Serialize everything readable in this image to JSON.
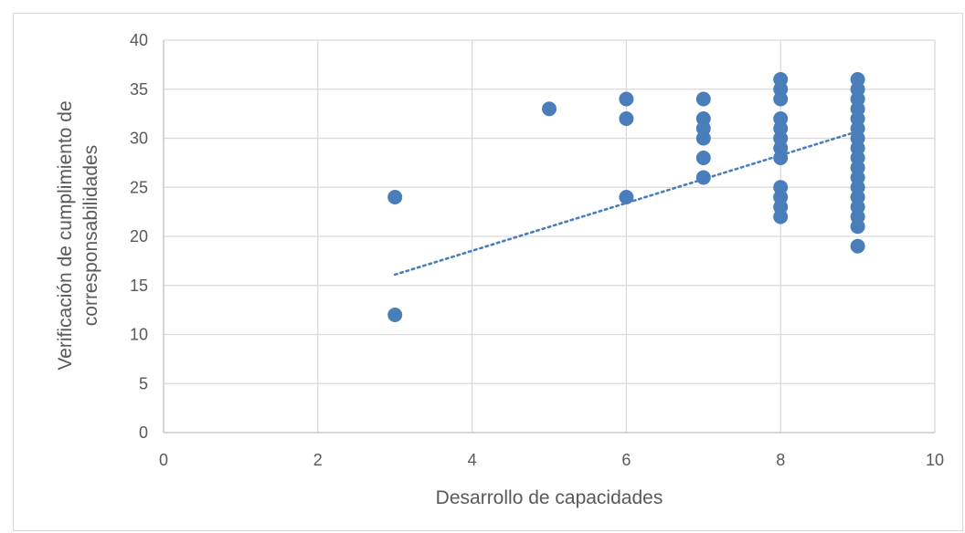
{
  "chart_data": {
    "type": "scatter",
    "title": "",
    "xlabel": "Desarrollo de capacidades",
    "ylabel_lines": [
      "Verificación de cumplimiento de",
      "corresponsabilidades"
    ],
    "xlim": [
      0,
      10
    ],
    "ylim": [
      0,
      40
    ],
    "xticks": [
      "0",
      "2",
      "4",
      "6",
      "8",
      "10"
    ],
    "yticks": [
      "0",
      "5",
      "10",
      "15",
      "20",
      "25",
      "30",
      "35",
      "40"
    ],
    "grid": true,
    "legend": "none",
    "marker_color": "#4a7ebb",
    "trendline": {
      "type": "linear",
      "style": "dotted",
      "color": "#4a7ebb",
      "x": [
        3,
        9
      ],
      "y": [
        16.1,
        30.7
      ]
    },
    "points": [
      {
        "x": 3,
        "y": 24
      },
      {
        "x": 3,
        "y": 12
      },
      {
        "x": 5,
        "y": 33
      },
      {
        "x": 6,
        "y": 34
      },
      {
        "x": 6,
        "y": 32
      },
      {
        "x": 6,
        "y": 24
      },
      {
        "x": 7,
        "y": 34
      },
      {
        "x": 7,
        "y": 32
      },
      {
        "x": 7,
        "y": 31
      },
      {
        "x": 7,
        "y": 30
      },
      {
        "x": 7,
        "y": 28
      },
      {
        "x": 7,
        "y": 26
      },
      {
        "x": 8,
        "y": 36
      },
      {
        "x": 8,
        "y": 35
      },
      {
        "x": 8,
        "y": 34
      },
      {
        "x": 8,
        "y": 32
      },
      {
        "x": 8,
        "y": 31
      },
      {
        "x": 8,
        "y": 30
      },
      {
        "x": 8,
        "y": 29
      },
      {
        "x": 8,
        "y": 28
      },
      {
        "x": 8,
        "y": 25
      },
      {
        "x": 8,
        "y": 24
      },
      {
        "x": 8,
        "y": 23
      },
      {
        "x": 8,
        "y": 22
      },
      {
        "x": 9,
        "y": 36
      },
      {
        "x": 9,
        "y": 35
      },
      {
        "x": 9,
        "y": 34
      },
      {
        "x": 9,
        "y": 33
      },
      {
        "x": 9,
        "y": 32
      },
      {
        "x": 9,
        "y": 31
      },
      {
        "x": 9,
        "y": 30
      },
      {
        "x": 9,
        "y": 29
      },
      {
        "x": 9,
        "y": 28
      },
      {
        "x": 9,
        "y": 27
      },
      {
        "x": 9,
        "y": 26
      },
      {
        "x": 9,
        "y": 25
      },
      {
        "x": 9,
        "y": 24
      },
      {
        "x": 9,
        "y": 23
      },
      {
        "x": 9,
        "y": 22
      },
      {
        "x": 9,
        "y": 21
      },
      {
        "x": 9,
        "y": 19
      }
    ]
  }
}
